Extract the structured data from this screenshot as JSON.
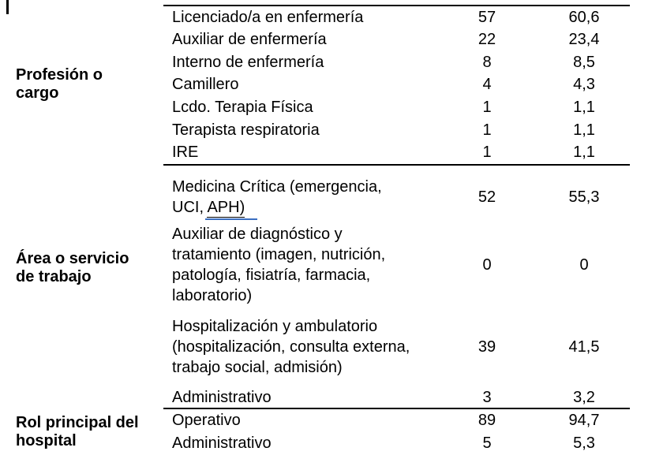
{
  "colors": {
    "background": "#ffffff",
    "text": "#000000",
    "rule": "#000000",
    "annotation_blue": "#3a6ec1"
  },
  "table": {
    "sections": [
      {
        "label_lines": [
          "Profesión o",
          "cargo"
        ],
        "rows": [
          {
            "category": "Licenciado/a en enfermería",
            "n": "57",
            "pct": "60,6"
          },
          {
            "category": "Auxiliar de enfermería",
            "n": "22",
            "pct": "23,4"
          },
          {
            "category": "Interno de enfermería",
            "n": "8",
            "pct": "8,5"
          },
          {
            "category": "Camillero",
            "n": "4",
            "pct": "4,3"
          },
          {
            "category": "Lcdo. Terapia Física",
            "n": "1",
            "pct": "1,1"
          },
          {
            "category": "Terapista respiratoria",
            "n": "1",
            "pct": "1,1"
          },
          {
            "category": "IRE",
            "n": "1",
            "pct": "1,1"
          }
        ]
      },
      {
        "label_lines": [
          "Área o servicio",
          "de trabajo"
        ],
        "rows": [
          {
            "category_lines": [
              "Medicina Crítica (emergencia,",
              "UCI, "
            ],
            "category_underlined": "APH)",
            "n": "52",
            "pct": "55,3"
          },
          {
            "category_lines": [
              "Auxiliar de diagnóstico y",
              "tratamiento (imagen, nutrición,",
              "patología, fisiatría, farmacia,",
              "laboratorio)"
            ],
            "n": "0",
            "pct": "0"
          },
          {
            "category_lines": [
              "Hospitalización y ambulatorio",
              "(hospitalización, consulta externa,",
              "trabajo social, admisión)"
            ],
            "n": "39",
            "pct": "41,5"
          },
          {
            "category": "Administrativo",
            "n": "3",
            "pct": "3,2"
          }
        ]
      },
      {
        "label_lines": [
          "Rol principal del",
          "hospital"
        ],
        "rows": [
          {
            "category": "Operativo",
            "n": "89",
            "pct": "94,7"
          },
          {
            "category": "Administrativo",
            "n": "5",
            "pct": "5,3"
          }
        ]
      }
    ]
  }
}
